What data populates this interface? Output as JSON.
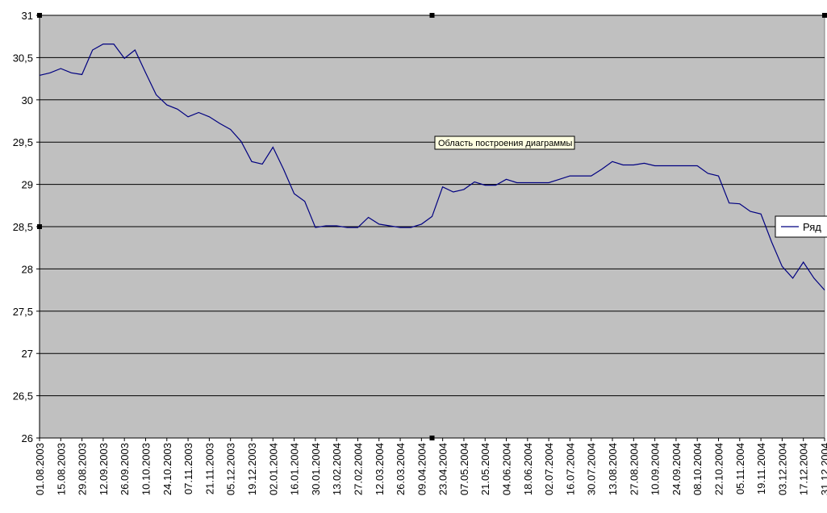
{
  "chart_data": {
    "type": "line",
    "categories": [
      "01.08.2003",
      null,
      "15.08.2003",
      null,
      "29.08.2003",
      null,
      "12.09.2003",
      null,
      "26.09.2003",
      null,
      "10.10.2003",
      null,
      "24.10.2003",
      null,
      "07.11.2003",
      null,
      "21.11.2003",
      null,
      "05.12.2003",
      null,
      "19.12.2003",
      null,
      "02.01.2004",
      null,
      "16.01.2004",
      null,
      "30.01.2004",
      null,
      "13.02.2004",
      null,
      "27.02.2004",
      null,
      "12.03.2004",
      null,
      "26.03.2004",
      null,
      "09.04.2004",
      null,
      "23.04.2004",
      null,
      "07.05.2004",
      null,
      "21.05.2004",
      null,
      "04.06.2004",
      null,
      "18.06.2004",
      null,
      "02.07.2004",
      null,
      "16.07.2004",
      null,
      "30.07.2004",
      null,
      "13.08.2004",
      null,
      "27.08.2004",
      null,
      "10.09.2004",
      null,
      "24.09.2004",
      null,
      "08.10.2004",
      null,
      "22.10.2004",
      null,
      "05.11.2004",
      null,
      "19.11.2004",
      null,
      "03.12.2004",
      null,
      "17.12.2004",
      null,
      "31.12.2004"
    ],
    "series": [
      {
        "name": "Ряд",
        "color": "#000080",
        "values": [
          30.29,
          30.32,
          30.37,
          30.32,
          30.3,
          30.59,
          30.66,
          30.66,
          30.49,
          30.59,
          30.32,
          30.06,
          29.94,
          29.89,
          29.8,
          29.85,
          29.8,
          29.72,
          29.65,
          29.51,
          29.27,
          29.24,
          29.44,
          29.18,
          28.89,
          28.8,
          28.49,
          28.51,
          28.51,
          28.49,
          28.49,
          28.61,
          28.53,
          28.51,
          28.49,
          28.49,
          28.53,
          28.62,
          28.97,
          28.91,
          28.94,
          29.03,
          28.99,
          28.99,
          29.06,
          29.02,
          29.02,
          29.02,
          29.02,
          29.06,
          29.1,
          29.1,
          29.1,
          29.18,
          29.27,
          29.23,
          29.23,
          29.25,
          29.22,
          29.22,
          29.22,
          29.22,
          29.22,
          29.13,
          29.1,
          28.78,
          28.77,
          28.68,
          28.65,
          28.32,
          28.03,
          27.89,
          28.08,
          27.89,
          27.75
        ]
      }
    ],
    "ylim": [
      26,
      31
    ],
    "yticks": [
      26,
      {
        "value": 26.5,
        "label": "26,5"
      },
      27,
      {
        "value": 27.5,
        "label": "27,5"
      },
      28,
      {
        "value": 28.5,
        "label": "28,5"
      },
      29,
      {
        "value": 29.5,
        "label": "29,5"
      },
      30,
      {
        "value": 30.5,
        "label": "30,5"
      },
      31
    ],
    "grid": true,
    "plot_background": "#c0c0c0",
    "legend": "right",
    "tooltip": "Область построения диаграммы"
  }
}
